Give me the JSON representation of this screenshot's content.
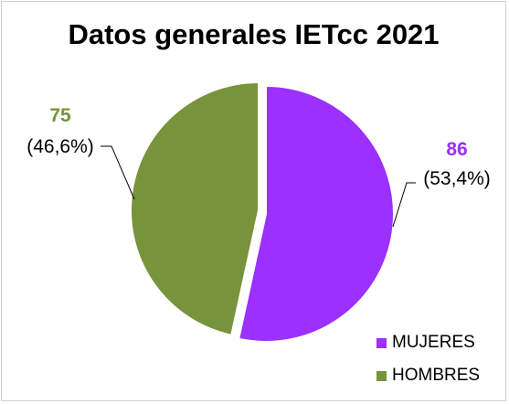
{
  "chart_data": {
    "type": "pie",
    "title": "Datos generales IETcc 2021",
    "slices": [
      {
        "name": "MUJERES",
        "value": 86,
        "value_label": "86",
        "percent_label": "(53,4%)",
        "color": "#9b30ff"
      },
      {
        "name": "HOMBRES",
        "value": 75,
        "value_label": "75",
        "percent_label": "(46,6%)",
        "color": "#77933c"
      }
    ],
    "legend_position": "bottom-right"
  }
}
